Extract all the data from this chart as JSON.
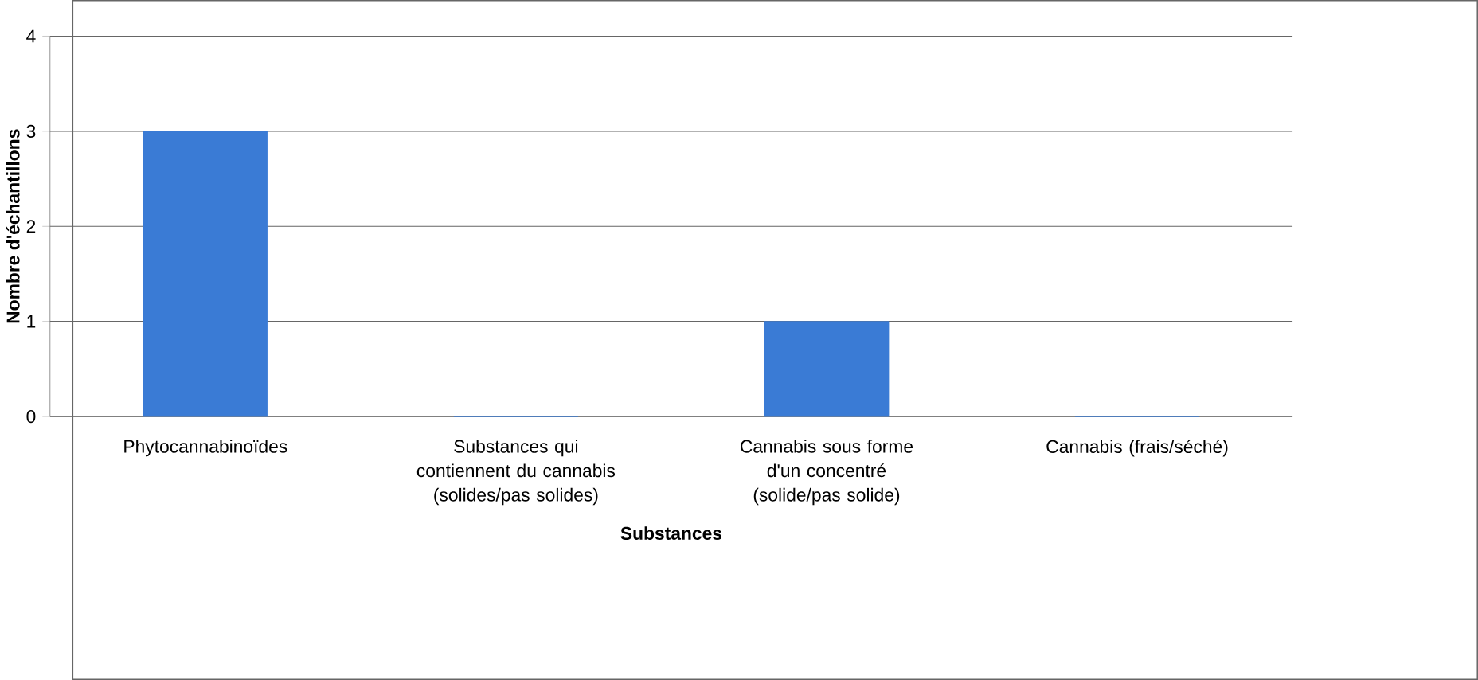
{
  "chart_data": {
    "type": "bar",
    "xlabel": "Substances",
    "ylabel": "Nombre d'échantillons",
    "categories": [
      "Phytocannabinoïdes",
      "Substances qui contiennent du cannabis (solides/pas solides)",
      "Cannabis sous forme d'un concentré (solide/pas solide)",
      "Cannabis (frais/séché)"
    ],
    "values": [
      3,
      0,
      1,
      0
    ],
    "color": "#3a7bd5",
    "ylim": [
      0,
      4
    ],
    "yticks": [
      0,
      1,
      2,
      3,
      4
    ],
    "grid": "y"
  }
}
